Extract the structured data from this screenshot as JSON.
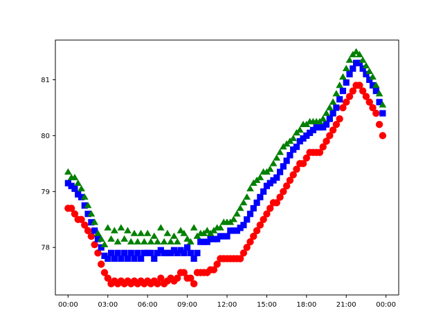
{
  "chart_data": {
    "type": "scatter",
    "title": "",
    "xlabel": "",
    "ylabel": "",
    "x_unit": "hours",
    "xlim": [
      -0.96,
      24.96
    ],
    "ylim": [
      77.15,
      81.71
    ],
    "grid": false,
    "legend": "none",
    "x_ticks": [
      {
        "value": 0,
        "label": "00:00"
      },
      {
        "value": 3,
        "label": "03:00"
      },
      {
        "value": 6,
        "label": "06:00"
      },
      {
        "value": 9,
        "label": "09:00"
      },
      {
        "value": 12,
        "label": "12:00"
      },
      {
        "value": 15,
        "label": "15:00"
      },
      {
        "value": 18,
        "label": "18:00"
      },
      {
        "value": 21,
        "label": "21:00"
      },
      {
        "value": 24,
        "label": "00:00"
      }
    ],
    "y_ticks": [
      {
        "value": 78,
        "label": "78"
      },
      {
        "value": 79,
        "label": "79"
      },
      {
        "value": 80,
        "label": "80"
      },
      {
        "value": 81,
        "label": "81"
      }
    ],
    "series": [
      {
        "marker": "circle",
        "color": "#ff0000",
        "points": [
          [
            0.0,
            78.7
          ],
          [
            0.25,
            78.7
          ],
          [
            0.5,
            78.6
          ],
          [
            0.75,
            78.5
          ],
          [
            1.0,
            78.5
          ],
          [
            1.25,
            78.4
          ],
          [
            1.5,
            78.3
          ],
          [
            1.75,
            78.2
          ],
          [
            2.0,
            78.05
          ],
          [
            2.25,
            77.9
          ],
          [
            2.5,
            77.7
          ],
          [
            2.75,
            77.55
          ],
          [
            3.0,
            77.45
          ],
          [
            3.25,
            77.35
          ],
          [
            3.5,
            77.4
          ],
          [
            3.75,
            77.35
          ],
          [
            4.0,
            77.4
          ],
          [
            4.25,
            77.35
          ],
          [
            4.5,
            77.4
          ],
          [
            4.75,
            77.35
          ],
          [
            5.0,
            77.4
          ],
          [
            5.25,
            77.35
          ],
          [
            5.5,
            77.4
          ],
          [
            5.75,
            77.35
          ],
          [
            6.0,
            77.4
          ],
          [
            6.25,
            77.35
          ],
          [
            6.5,
            77.4
          ],
          [
            6.75,
            77.35
          ],
          [
            7.0,
            77.45
          ],
          [
            7.25,
            77.35
          ],
          [
            7.5,
            77.4
          ],
          [
            7.75,
            77.45
          ],
          [
            8.0,
            77.4
          ],
          [
            8.25,
            77.45
          ],
          [
            8.5,
            77.55
          ],
          [
            8.75,
            77.55
          ],
          [
            9.0,
            77.45
          ],
          [
            9.25,
            77.45
          ],
          [
            9.5,
            77.35
          ],
          [
            9.75,
            77.55
          ],
          [
            10.0,
            77.55
          ],
          [
            10.25,
            77.55
          ],
          [
            10.5,
            77.55
          ],
          [
            10.75,
            77.6
          ],
          [
            11.0,
            77.6
          ],
          [
            11.25,
            77.7
          ],
          [
            11.5,
            77.8
          ],
          [
            11.75,
            77.8
          ],
          [
            12.0,
            77.8
          ],
          [
            12.25,
            77.8
          ],
          [
            12.5,
            77.8
          ],
          [
            12.75,
            77.8
          ],
          [
            13.0,
            77.8
          ],
          [
            13.25,
            77.9
          ],
          [
            13.5,
            78.0
          ],
          [
            13.75,
            78.1
          ],
          [
            14.0,
            78.2
          ],
          [
            14.25,
            78.3
          ],
          [
            14.5,
            78.4
          ],
          [
            14.75,
            78.5
          ],
          [
            15.0,
            78.6
          ],
          [
            15.25,
            78.7
          ],
          [
            15.5,
            78.8
          ],
          [
            15.75,
            78.8
          ],
          [
            16.0,
            78.9
          ],
          [
            16.25,
            79.0
          ],
          [
            16.5,
            79.1
          ],
          [
            16.75,
            79.2
          ],
          [
            17.0,
            79.3
          ],
          [
            17.25,
            79.4
          ],
          [
            17.5,
            79.5
          ],
          [
            17.75,
            79.5
          ],
          [
            18.0,
            79.6
          ],
          [
            18.25,
            79.7
          ],
          [
            18.5,
            79.7
          ],
          [
            18.75,
            79.7
          ],
          [
            19.0,
            79.7
          ],
          [
            19.25,
            79.8
          ],
          [
            19.5,
            79.9
          ],
          [
            19.75,
            80.0
          ],
          [
            20.0,
            80.1
          ],
          [
            20.25,
            80.2
          ],
          [
            20.5,
            80.3
          ],
          [
            20.75,
            80.5
          ],
          [
            21.0,
            80.6
          ],
          [
            21.25,
            80.7
          ],
          [
            21.5,
            80.8
          ],
          [
            21.75,
            80.9
          ],
          [
            22.0,
            80.9
          ],
          [
            22.25,
            80.8
          ],
          [
            22.5,
            80.7
          ],
          [
            22.75,
            80.6
          ],
          [
            23.0,
            80.5
          ],
          [
            23.25,
            80.4
          ],
          [
            23.5,
            80.2
          ],
          [
            23.75,
            80.0
          ]
        ]
      },
      {
        "marker": "square",
        "color": "#0000ff",
        "points": [
          [
            0.0,
            79.15
          ],
          [
            0.25,
            79.1
          ],
          [
            0.5,
            79.05
          ],
          [
            0.75,
            78.95
          ],
          [
            1.0,
            78.9
          ],
          [
            1.25,
            78.75
          ],
          [
            1.5,
            78.6
          ],
          [
            1.75,
            78.45
          ],
          [
            2.0,
            78.3
          ],
          [
            2.25,
            78.15
          ],
          [
            2.5,
            78.0
          ],
          [
            2.75,
            77.85
          ],
          [
            3.0,
            77.8
          ],
          [
            3.25,
            77.9
          ],
          [
            3.5,
            77.8
          ],
          [
            3.75,
            77.9
          ],
          [
            4.0,
            77.8
          ],
          [
            4.25,
            77.9
          ],
          [
            4.5,
            77.8
          ],
          [
            4.75,
            77.9
          ],
          [
            5.0,
            77.8
          ],
          [
            5.25,
            77.9
          ],
          [
            5.5,
            77.8
          ],
          [
            5.75,
            77.9
          ],
          [
            6.0,
            77.9
          ],
          [
            6.25,
            77.9
          ],
          [
            6.5,
            77.8
          ],
          [
            6.75,
            77.9
          ],
          [
            7.0,
            77.95
          ],
          [
            7.25,
            77.9
          ],
          [
            7.5,
            77.9
          ],
          [
            7.75,
            77.9
          ],
          [
            8.0,
            77.95
          ],
          [
            8.25,
            77.9
          ],
          [
            8.5,
            77.95
          ],
          [
            8.75,
            77.9
          ],
          [
            9.0,
            78.0
          ],
          [
            9.25,
            77.9
          ],
          [
            9.5,
            77.8
          ],
          [
            9.75,
            77.9
          ],
          [
            10.0,
            78.1
          ],
          [
            10.25,
            78.1
          ],
          [
            10.5,
            78.1
          ],
          [
            10.75,
            78.15
          ],
          [
            11.0,
            78.15
          ],
          [
            11.25,
            78.15
          ],
          [
            11.5,
            78.2
          ],
          [
            11.75,
            78.2
          ],
          [
            12.0,
            78.2
          ],
          [
            12.25,
            78.3
          ],
          [
            12.5,
            78.3
          ],
          [
            12.75,
            78.3
          ],
          [
            13.0,
            78.35
          ],
          [
            13.25,
            78.4
          ],
          [
            13.5,
            78.5
          ],
          [
            13.75,
            78.6
          ],
          [
            14.0,
            78.7
          ],
          [
            14.25,
            78.8
          ],
          [
            14.5,
            78.9
          ],
          [
            14.75,
            79.0
          ],
          [
            15.0,
            79.1
          ],
          [
            15.25,
            79.15
          ],
          [
            15.5,
            79.2
          ],
          [
            15.75,
            79.25
          ],
          [
            16.0,
            79.35
          ],
          [
            16.25,
            79.45
          ],
          [
            16.5,
            79.55
          ],
          [
            16.75,
            79.65
          ],
          [
            17.0,
            79.75
          ],
          [
            17.25,
            79.8
          ],
          [
            17.5,
            79.9
          ],
          [
            17.75,
            79.95
          ],
          [
            18.0,
            80.0
          ],
          [
            18.25,
            80.05
          ],
          [
            18.5,
            80.1
          ],
          [
            18.75,
            80.15
          ],
          [
            19.0,
            80.15
          ],
          [
            19.25,
            80.15
          ],
          [
            19.5,
            80.2
          ],
          [
            19.75,
            80.3
          ],
          [
            20.0,
            80.4
          ],
          [
            20.25,
            80.5
          ],
          [
            20.5,
            80.65
          ],
          [
            20.75,
            80.8
          ],
          [
            21.0,
            80.95
          ],
          [
            21.25,
            81.1
          ],
          [
            21.5,
            81.2
          ],
          [
            21.75,
            81.3
          ],
          [
            22.0,
            81.3
          ],
          [
            22.25,
            81.2
          ],
          [
            22.5,
            81.1
          ],
          [
            22.75,
            81.0
          ],
          [
            23.0,
            80.9
          ],
          [
            23.25,
            80.8
          ],
          [
            23.5,
            80.6
          ],
          [
            23.75,
            80.4
          ]
        ]
      },
      {
        "marker": "triangle",
        "color": "#008000",
        "points": [
          [
            0.0,
            79.35
          ],
          [
            0.25,
            79.25
          ],
          [
            0.5,
            79.25
          ],
          [
            0.75,
            79.15
          ],
          [
            1.0,
            79.05
          ],
          [
            1.25,
            78.9
          ],
          [
            1.5,
            78.75
          ],
          [
            1.75,
            78.6
          ],
          [
            2.0,
            78.45
          ],
          [
            2.25,
            78.25
          ],
          [
            2.5,
            78.15
          ],
          [
            2.75,
            78.05
          ],
          [
            3.0,
            78.35
          ],
          [
            3.25,
            78.15
          ],
          [
            3.5,
            78.3
          ],
          [
            3.75,
            78.1
          ],
          [
            4.0,
            78.35
          ],
          [
            4.25,
            78.15
          ],
          [
            4.5,
            78.3
          ],
          [
            4.75,
            78.1
          ],
          [
            5.0,
            78.25
          ],
          [
            5.25,
            78.1
          ],
          [
            5.5,
            78.25
          ],
          [
            5.75,
            78.1
          ],
          [
            6.0,
            78.25
          ],
          [
            6.25,
            78.1
          ],
          [
            6.5,
            78.2
          ],
          [
            6.75,
            78.1
          ],
          [
            7.0,
            78.35
          ],
          [
            7.25,
            78.1
          ],
          [
            7.5,
            78.25
          ],
          [
            7.75,
            78.1
          ],
          [
            8.0,
            78.2
          ],
          [
            8.25,
            78.1
          ],
          [
            8.5,
            78.3
          ],
          [
            8.75,
            78.25
          ],
          [
            9.0,
            78.15
          ],
          [
            9.25,
            78.1
          ],
          [
            9.5,
            78.35
          ],
          [
            9.75,
            78.2
          ],
          [
            10.0,
            78.25
          ],
          [
            10.25,
            78.25
          ],
          [
            10.5,
            78.3
          ],
          [
            10.75,
            78.25
          ],
          [
            11.0,
            78.3
          ],
          [
            11.25,
            78.35
          ],
          [
            11.5,
            78.35
          ],
          [
            11.75,
            78.45
          ],
          [
            12.0,
            78.45
          ],
          [
            12.25,
            78.45
          ],
          [
            12.5,
            78.5
          ],
          [
            12.75,
            78.6
          ],
          [
            13.0,
            78.7
          ],
          [
            13.25,
            78.8
          ],
          [
            13.5,
            78.9
          ],
          [
            13.75,
            79.05
          ],
          [
            14.0,
            79.15
          ],
          [
            14.25,
            79.2
          ],
          [
            14.5,
            79.25
          ],
          [
            14.75,
            79.35
          ],
          [
            15.0,
            79.35
          ],
          [
            15.25,
            79.4
          ],
          [
            15.5,
            79.5
          ],
          [
            15.75,
            79.6
          ],
          [
            16.0,
            79.7
          ],
          [
            16.25,
            79.8
          ],
          [
            16.5,
            79.85
          ],
          [
            16.75,
            79.9
          ],
          [
            17.0,
            79.95
          ],
          [
            17.25,
            80.05
          ],
          [
            17.5,
            80.1
          ],
          [
            17.75,
            80.2
          ],
          [
            18.0,
            80.2
          ],
          [
            18.25,
            80.25
          ],
          [
            18.5,
            80.25
          ],
          [
            18.75,
            80.25
          ],
          [
            19.0,
            80.25
          ],
          [
            19.25,
            80.3
          ],
          [
            19.5,
            80.4
          ],
          [
            19.75,
            80.5
          ],
          [
            20.0,
            80.6
          ],
          [
            20.25,
            80.75
          ],
          [
            20.5,
            80.9
          ],
          [
            20.75,
            81.05
          ],
          [
            21.0,
            81.2
          ],
          [
            21.25,
            81.35
          ],
          [
            21.5,
            81.45
          ],
          [
            21.75,
            81.5
          ],
          [
            22.0,
            81.45
          ],
          [
            22.25,
            81.35
          ],
          [
            22.5,
            81.25
          ],
          [
            22.75,
            81.15
          ],
          [
            23.0,
            81.05
          ],
          [
            23.25,
            80.9
          ],
          [
            23.5,
            80.75
          ],
          [
            23.75,
            80.55
          ]
        ]
      }
    ]
  }
}
